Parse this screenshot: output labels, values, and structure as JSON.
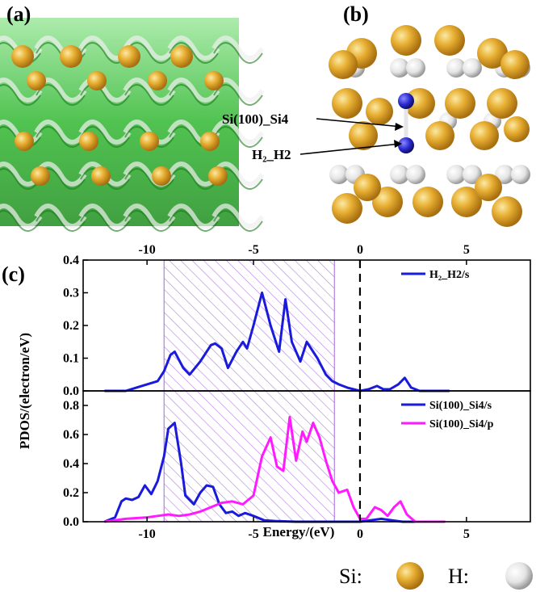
{
  "panels": {
    "a": {
      "label": "(a)"
    },
    "b": {
      "label": "(b)",
      "annotations": [
        "Si(100)_Si4",
        "H₂_H2"
      ]
    },
    "c": {
      "label": "(c)"
    }
  },
  "key": {
    "items": [
      {
        "label": "Si:",
        "color": "#e0a92b"
      },
      {
        "label": "H:",
        "color": "#e8e8e8"
      }
    ]
  },
  "colors": {
    "h2": "#1a1adc",
    "si_s": "#1a1adc",
    "si_p": "#ff1aff",
    "hatch": "#b080e0",
    "si_atom": "#e0a92b",
    "h_atom": "#e8e8e8",
    "surface": "#2cbf2c"
  },
  "chart_data": {
    "type": "line",
    "xlabel": "Energy/(eV)",
    "ylabel": "PDOS/(electron/eV)",
    "xlim": [
      -13,
      8
    ],
    "x_ticks": [
      -10,
      -5,
      0,
      5
    ],
    "fermi_level": 0,
    "shaded_region": [
      -9.2,
      -1.2
    ],
    "subplots": [
      {
        "ylim": [
          0,
          0.4
        ],
        "y_ticks": [
          "0.0",
          "0.1",
          "0.2",
          "0.3",
          "0.4"
        ],
        "legend_position": "top-right",
        "series": [
          {
            "name": "H₂_H2/s",
            "color": "#1a1adc",
            "x": [
              -12,
              -11,
              -10.5,
              -10,
              -9.5,
              -9.2,
              -8.9,
              -8.7,
              -8.3,
              -8.0,
              -7.5,
              -7.0,
              -6.8,
              -6.5,
              -6.2,
              -5.8,
              -5.5,
              -5.3,
              -5.0,
              -4.6,
              -4.2,
              -3.8,
              -3.5,
              -3.2,
              -2.8,
              -2.5,
              -2.0,
              -1.6,
              -1.3,
              -1.0,
              -0.6,
              -0.3,
              0.0,
              0.4,
              0.8,
              1.1,
              1.4,
              1.8,
              2.1,
              2.4,
              2.8,
              3.5,
              4.2
            ],
            "y": [
              0.0,
              0.0,
              0.01,
              0.02,
              0.03,
              0.06,
              0.11,
              0.12,
              0.07,
              0.05,
              0.09,
              0.14,
              0.145,
              0.13,
              0.07,
              0.12,
              0.15,
              0.13,
              0.2,
              0.3,
              0.2,
              0.12,
              0.28,
              0.15,
              0.09,
              0.15,
              0.1,
              0.05,
              0.03,
              0.02,
              0.01,
              0.005,
              0.0,
              0.005,
              0.015,
              0.005,
              0.005,
              0.02,
              0.04,
              0.01,
              0.0,
              0.0,
              0.0
            ]
          }
        ]
      },
      {
        "ylim": [
          0,
          0.9
        ],
        "y_ticks": [
          "0.0",
          "0.2",
          "0.4",
          "0.6",
          "0.8"
        ],
        "legend_position": "top-right",
        "series": [
          {
            "name": "Si(100)_Si4/s",
            "color": "#1a1adc",
            "x": [
              -12,
              -11.5,
              -11.2,
              -11.0,
              -10.7,
              -10.4,
              -10.1,
              -9.8,
              -9.5,
              -9.2,
              -9.0,
              -8.7,
              -8.4,
              -8.2,
              -7.8,
              -7.5,
              -7.2,
              -6.9,
              -6.6,
              -6.3,
              -6.0,
              -5.7,
              -5.4,
              -5.0,
              -4.5,
              -4.0,
              -3.0,
              -2.0,
              -1.0,
              0.0,
              0.5,
              1.0,
              1.5,
              2.0,
              2.5,
              3.0
            ],
            "y": [
              0.0,
              0.03,
              0.14,
              0.16,
              0.15,
              0.17,
              0.25,
              0.19,
              0.28,
              0.45,
              0.64,
              0.68,
              0.4,
              0.18,
              0.12,
              0.2,
              0.25,
              0.24,
              0.12,
              0.06,
              0.07,
              0.04,
              0.06,
              0.04,
              0.01,
              0.005,
              0.0,
              0.0,
              0.0,
              0.0,
              0.01,
              0.02,
              0.01,
              0.0,
              0.0,
              0.0
            ]
          },
          {
            "name": "Si(100)_Si4/p",
            "color": "#ff1aff",
            "x": [
              -12,
              -11,
              -10,
              -9.5,
              -9.0,
              -8.5,
              -8.0,
              -7.5,
              -7.0,
              -6.5,
              -6.0,
              -5.5,
              -5.0,
              -4.6,
              -4.2,
              -3.9,
              -3.6,
              -3.3,
              -3.0,
              -2.7,
              -2.5,
              -2.2,
              -1.9,
              -1.6,
              -1.3,
              -1.0,
              -0.6,
              -0.3,
              0.0,
              0.3,
              0.7,
              1.0,
              1.3,
              1.6,
              1.9,
              2.2,
              2.6,
              3.0,
              4.0
            ],
            "y": [
              0.0,
              0.02,
              0.03,
              0.04,
              0.05,
              0.04,
              0.05,
              0.07,
              0.1,
              0.13,
              0.14,
              0.12,
              0.18,
              0.45,
              0.58,
              0.38,
              0.35,
              0.72,
              0.42,
              0.62,
              0.55,
              0.68,
              0.58,
              0.42,
              0.28,
              0.2,
              0.22,
              0.1,
              0.02,
              0.02,
              0.1,
              0.08,
              0.04,
              0.1,
              0.14,
              0.05,
              0.0,
              0.0,
              0.0
            ]
          }
        ]
      }
    ]
  }
}
